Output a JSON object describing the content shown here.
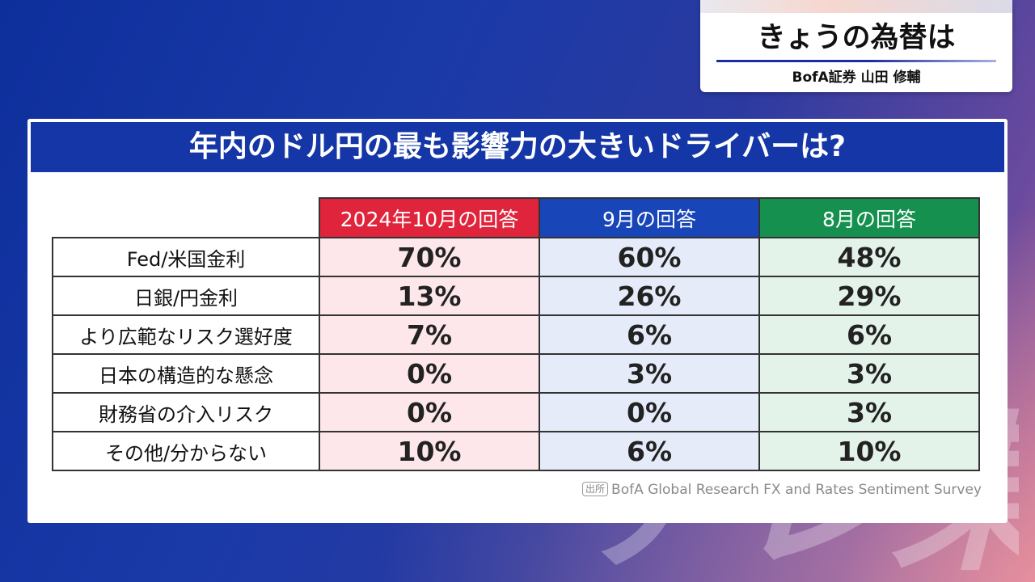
{
  "corner": {
    "title": "きょうの為替は",
    "subtitle": "BofA証券 山田 修輔"
  },
  "panel": {
    "title": "年内のドル円の最も影響力の大きいドライバーは?",
    "columns": [
      {
        "label": "2024年10月の回答",
        "color": "#e0243c"
      },
      {
        "label": "9月の回答",
        "color": "#1846b8"
      },
      {
        "label": "8月の回答",
        "color": "#15904e"
      }
    ],
    "rows": [
      {
        "label": "Fed/米国金利",
        "values": [
          "70%",
          "60%",
          "48%"
        ]
      },
      {
        "label": "日銀/円金利",
        "values": [
          "13%",
          "26%",
          "29%"
        ]
      },
      {
        "label": "より広範なリスク選好度",
        "values": [
          "7%",
          "6%",
          "6%"
        ]
      },
      {
        "label": "日本の構造的な懸念",
        "values": [
          "0%",
          "3%",
          "3%"
        ]
      },
      {
        "label": "財務省の介入リスク",
        "values": [
          "0%",
          "0%",
          "3%"
        ]
      },
      {
        "label": "その他/分からない",
        "values": [
          "10%",
          "6%",
          "10%"
        ]
      }
    ],
    "source_tag": "出所",
    "source_text": "BofA Global Research FX and Rates Sentiment Survey"
  },
  "watermark": "テレ東"
}
